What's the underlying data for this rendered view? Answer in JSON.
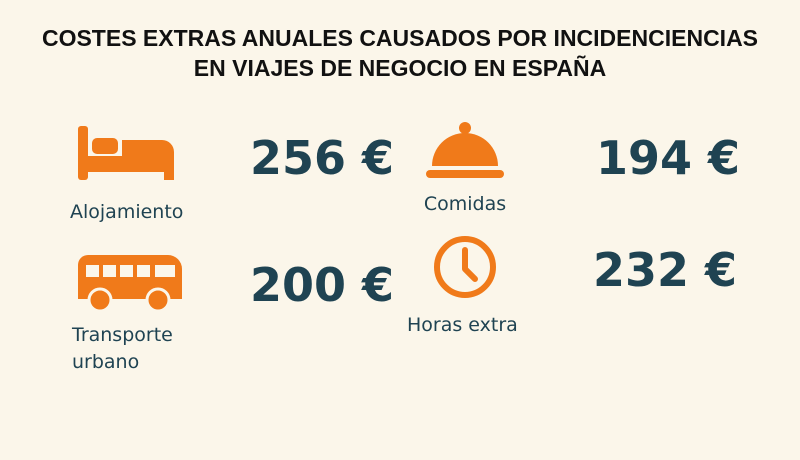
{
  "header": {
    "title_lines": [
      "COSTES EXTRAS ANUALES CAUSADOS POR INCIDENCIENCIAS",
      "EN VIAJES DE NEGOCIO EN ESPAÑA"
    ]
  },
  "items": [
    {
      "label_lines": [
        "Alojamiento"
      ],
      "value": "256 €"
    },
    {
      "label_lines": [
        "Comidas"
      ],
      "value": "194 €"
    },
    {
      "label_lines": [
        "Transporte",
        "urbano"
      ],
      "value": "200 €"
    },
    {
      "label_lines": [
        "Horas extra"
      ],
      "value": "232 €"
    }
  ]
}
